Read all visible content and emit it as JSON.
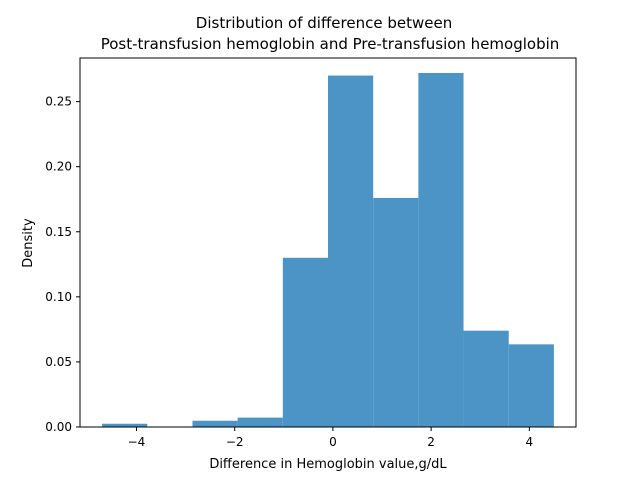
{
  "chart_data": {
    "type": "bar",
    "title_line1": "Distribution of difference between",
    "title_line2": "Post-transfusion hemoglobin and Pre-transfusion hemoglobin",
    "xlabel": "Difference in Hemoglobin value,g/dL",
    "ylabel": "Density",
    "bar_color": "#4c94c6",
    "xlim": [
      -5.15,
      4.95
    ],
    "ylim": [
      0,
      0.2835
    ],
    "grid": false,
    "x_ticks": [
      {
        "value": -4,
        "label": "−4"
      },
      {
        "value": -2,
        "label": "−2"
      },
      {
        "value": 0,
        "label": "0"
      },
      {
        "value": 2,
        "label": "2"
      },
      {
        "value": 4,
        "label": "4"
      }
    ],
    "y_ticks": [
      {
        "value": 0.0,
        "label": "0.00"
      },
      {
        "value": 0.05,
        "label": "0.05"
      },
      {
        "value": 0.1,
        "label": "0.10"
      },
      {
        "value": 0.15,
        "label": "0.15"
      },
      {
        "value": 0.2,
        "label": "0.20"
      },
      {
        "value": 0.25,
        "label": "0.25"
      }
    ],
    "bins": [
      {
        "x0": -4.7,
        "x1": -3.78,
        "value": 0.0025
      },
      {
        "x0": -3.78,
        "x1": -2.86,
        "value": 0.0
      },
      {
        "x0": -2.86,
        "x1": -1.94,
        "value": 0.0048
      },
      {
        "x0": -1.94,
        "x1": -1.02,
        "value": 0.0072
      },
      {
        "x0": -1.02,
        "x1": -0.1,
        "value": 0.13
      },
      {
        "x0": -0.1,
        "x1": 0.82,
        "value": 0.27
      },
      {
        "x0": 0.82,
        "x1": 1.74,
        "value": 0.176
      },
      {
        "x0": 1.74,
        "x1": 2.66,
        "value": 0.272
      },
      {
        "x0": 2.66,
        "x1": 3.58,
        "value": 0.074
      },
      {
        "x0": 3.58,
        "x1": 4.5,
        "value": 0.0635
      }
    ]
  }
}
